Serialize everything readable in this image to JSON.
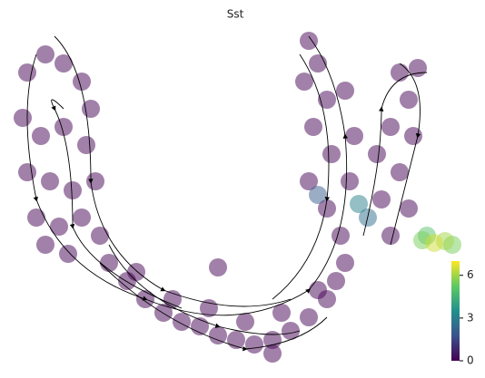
{
  "chart_data": {
    "type": "scatter",
    "title": "Sst",
    "colormap": "viridis",
    "xlim": [
      10,
      510
    ],
    "ylim": [
      0,
      380
    ],
    "clim": [
      0,
      7
    ],
    "cticks": [
      0,
      3,
      6
    ],
    "x": [
      30,
      50,
      70,
      90,
      100,
      25,
      45,
      70,
      95,
      30,
      55,
      80,
      105,
      40,
      65,
      90,
      50,
      75,
      110,
      120,
      140,
      160,
      180,
      200,
      220,
      240,
      260,
      280,
      300,
      320,
      340,
      360,
      370,
      380,
      150,
      190,
      230,
      270,
      310,
      350,
      300,
      240,
      340,
      350,
      335,
      360,
      345,
      365,
      340,
      360,
      375,
      385,
      390,
      380,
      440,
      460,
      450,
      430,
      455,
      440,
      420,
      450,
      430,
      415,
      395,
      405,
      350,
      465,
      478,
      490,
      498,
      470
    ],
    "y": [
      320,
      340,
      330,
      310,
      280,
      270,
      250,
      260,
      240,
      210,
      200,
      190,
      200,
      160,
      150,
      160,
      130,
      120,
      140,
      110,
      90,
      70,
      55,
      45,
      40,
      30,
      25,
      20,
      25,
      35,
      50,
      70,
      90,
      110,
      100,
      70,
      60,
      45,
      55,
      80,
      10,
      105,
      355,
      330,
      310,
      290,
      260,
      230,
      200,
      170,
      140,
      200,
      250,
      300,
      320,
      325,
      290,
      260,
      250,
      210,
      180,
      170,
      140,
      230,
      175,
      160,
      185,
      135,
      132,
      134,
      130,
      140
    ],
    "values": [
      0,
      0,
      0,
      0,
      0,
      0,
      0,
      0,
      0,
      0,
      0,
      0,
      0,
      0,
      0,
      0,
      0,
      0,
      0,
      0,
      0,
      0,
      0,
      0,
      0,
      0,
      0,
      0,
      0,
      0,
      0,
      0,
      0,
      0,
      0,
      0,
      0,
      0,
      0,
      0,
      0,
      0,
      0,
      0,
      0,
      0,
      0,
      0,
      0,
      0,
      0,
      0,
      0,
      0,
      0,
      0,
      0,
      0,
      0,
      0,
      0,
      0,
      0,
      0,
      3,
      2.5,
      2,
      5.5,
      6.5,
      6,
      5.5,
      5
    ]
  }
}
